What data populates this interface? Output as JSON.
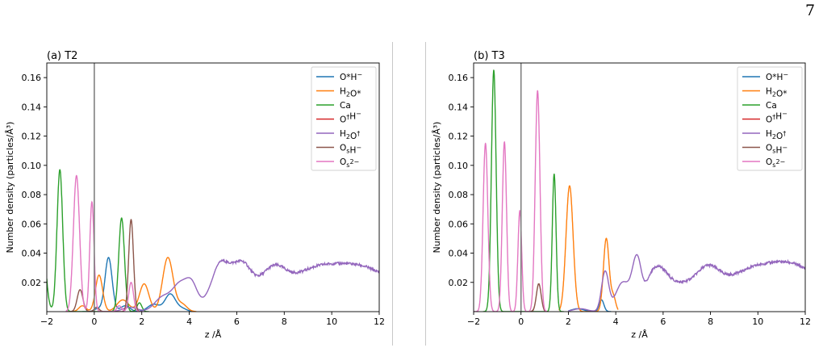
{
  "page": {
    "page_number": "7"
  },
  "colors": {
    "O*H-": "#1f77b4",
    "H2O*": "#ff7f0e",
    "Ca": "#2ca02c",
    "O†H-": "#d62728",
    "H2O†": "#9467bd",
    "OsH-": "#8c564b",
    "Os2-": "#e377c2",
    "interface_line": "#808080"
  },
  "chart_data": [
    {
      "type": "line",
      "title": "(a) T2",
      "xlabel": "z /Å",
      "ylabel": "Number density (particles/Å³)",
      "xlim": [
        -2,
        12
      ],
      "ylim": [
        0,
        0.17
      ],
      "xticks": [
        "−2",
        "0",
        "2",
        "4",
        "6",
        "8",
        "10",
        "12"
      ],
      "yticks": [
        "0.02",
        "0.04",
        "0.06",
        "0.08",
        "0.10",
        "0.12",
        "0.14",
        "0.16"
      ],
      "vline_x": 0,
      "legend_position": "top-right",
      "legend": [
        {
          "id": "O*H-",
          "label_main": "O*H",
          "label_sup": "−",
          "label_sub": ""
        },
        {
          "id": "H2O*",
          "label_main": "H",
          "label_sub": "2",
          "label_tail": "O*",
          "label_sup": ""
        },
        {
          "id": "Ca",
          "label_main": "Ca",
          "label_sup": "",
          "label_sub": ""
        },
        {
          "id": "O†H-",
          "label_main": "O",
          "label_sup": "†",
          "label_tail": "H",
          "label_sup2": "−"
        },
        {
          "id": "H2O†",
          "label_main": "H",
          "label_sub": "2",
          "label_tail": "O",
          "label_sup": "†"
        },
        {
          "id": "OsH-",
          "label_main": "O",
          "label_sub": "s",
          "label_tail": "H",
          "label_sup": "−"
        },
        {
          "id": "Os2-",
          "label_main": "O",
          "label_sub": "s",
          "label_sup": "2−"
        }
      ],
      "series": [
        {
          "name": "O*H-",
          "peaks": [
            [
              0.15,
              0.002,
              0.15
            ],
            [
              0.6,
              0.037,
              0.15
            ],
            [
              1.3,
              0.004,
              0.2
            ],
            [
              2.5,
              0.005,
              0.25
            ],
            [
              3.2,
              0.012,
              0.22
            ],
            [
              3.7,
              0.002,
              0.2
            ]
          ],
          "range": [
            -0.5,
            4.2
          ]
        },
        {
          "name": "H2O*",
          "peaks": [
            [
              -0.5,
              0.004,
              0.15
            ],
            [
              0.2,
              0.025,
              0.15
            ],
            [
              1.2,
              0.008,
              0.25
            ],
            [
              2.1,
              0.019,
              0.2
            ],
            [
              3.1,
              0.037,
              0.22
            ],
            [
              3.7,
              0.005,
              0.2
            ]
          ],
          "range": [
            -1.0,
            4.3
          ]
        },
        {
          "name": "Ca",
          "peaks": [
            [
              -2.3,
              0.09,
              0.18
            ],
            [
              -1.45,
              0.097,
              0.12
            ],
            [
              1.15,
              0.064,
              0.12
            ],
            [
              1.9,
              0.006,
              0.1
            ]
          ],
          "range": [
            -2.0,
            2.3
          ]
        },
        {
          "name": "O†H-",
          "peaks": [],
          "range": [
            -2.0,
            12.0
          ]
        },
        {
          "name": "H2O†",
          "peaks": [
            [
              1.5,
              0.003,
              0.3
            ],
            [
              2.9,
              0.01,
              0.35
            ],
            [
              3.6,
              0.017,
              0.3
            ],
            [
              4.1,
              0.017,
              0.25
            ],
            [
              5.5,
              0.039,
              0.5
            ],
            [
              6.3,
              0.03,
              0.3
            ],
            [
              7.6,
              0.032,
              0.45
            ],
            [
              9.5,
              0.03,
              0.9
            ],
            [
              11.2,
              0.03,
              0.9
            ]
          ],
          "range": [
            0.6,
            12.0
          ],
          "baseline": 0.03
        },
        {
          "name": "OsH-",
          "peaks": [
            [
              -0.6,
              0.015,
              0.12
            ],
            [
              0.1,
              0.003,
              0.1
            ],
            [
              1.55,
              0.063,
              0.1
            ]
          ],
          "range": [
            -1.2,
            2.0
          ]
        },
        {
          "name": "Os2-",
          "peaks": [
            [
              -0.75,
              0.093,
              0.13
            ],
            [
              -0.1,
              0.075,
              0.09
            ],
            [
              1.55,
              0.02,
              0.1
            ],
            [
              1.05,
              0.004,
              0.1
            ]
          ],
          "range": [
            -1.2,
            2.1
          ]
        }
      ]
    },
    {
      "type": "line",
      "title": "(b) T3",
      "xlabel": "z /Å",
      "ylabel": "Number density (particles/Å³)",
      "xlim": [
        -2,
        12
      ],
      "ylim": [
        0,
        0.17
      ],
      "xticks": [
        "−2",
        "0",
        "2",
        "4",
        "6",
        "8",
        "10",
        "12"
      ],
      "yticks": [
        "0.02",
        "0.04",
        "0.06",
        "0.08",
        "0.10",
        "0.12",
        "0.14",
        "0.16"
      ],
      "vline_x": 0,
      "legend_position": "top-right",
      "series": [
        {
          "name": "O*H-",
          "peaks": [
            [
              2.4,
              0.002,
              0.25
            ],
            [
              3.4,
              0.008,
              0.1
            ]
          ],
          "range": [
            2.0,
            3.8
          ]
        },
        {
          "name": "H2O*",
          "peaks": [
            [
              2.05,
              0.086,
              0.15
            ],
            [
              3.6,
              0.05,
              0.12
            ],
            [
              3.9,
              0.01,
              0.1
            ]
          ],
          "range": [
            1.6,
            4.1
          ]
        },
        {
          "name": "Ca",
          "peaks": [
            [
              -1.15,
              0.165,
              0.1
            ],
            [
              1.4,
              0.094,
              0.08
            ]
          ],
          "range": [
            -1.6,
            1.8
          ]
        },
        {
          "name": "O†H-",
          "peaks": [],
          "range": [
            -2.0,
            12.0
          ]
        },
        {
          "name": "H2O†",
          "peaks": [
            [
              2.5,
              0.002,
              0.3
            ],
            [
              3.55,
              0.027,
              0.15
            ],
            [
              4.3,
              0.02,
              0.3
            ],
            [
              4.9,
              0.035,
              0.2
            ],
            [
              5.8,
              0.033,
              0.35
            ],
            [
              7.9,
              0.033,
              0.45
            ],
            [
              10,
              0.03,
              0.9
            ],
            [
              11.5,
              0.031,
              0.8
            ]
          ],
          "range": [
            2.0,
            12.0
          ],
          "baseline": 0.03
        },
        {
          "name": "OsH-",
          "peaks": [
            [
              0.75,
              0.019,
              0.1
            ]
          ],
          "range": [
            0.4,
            1.1
          ]
        },
        {
          "name": "Os2-",
          "peaks": [
            [
              -1.5,
              0.115,
              0.1
            ],
            [
              -0.7,
              0.116,
              0.09
            ],
            [
              -0.05,
              0.069,
              0.08
            ],
            [
              0.7,
              0.151,
              0.1
            ]
          ],
          "range": [
            -2.0,
            1.1
          ]
        }
      ]
    }
  ]
}
